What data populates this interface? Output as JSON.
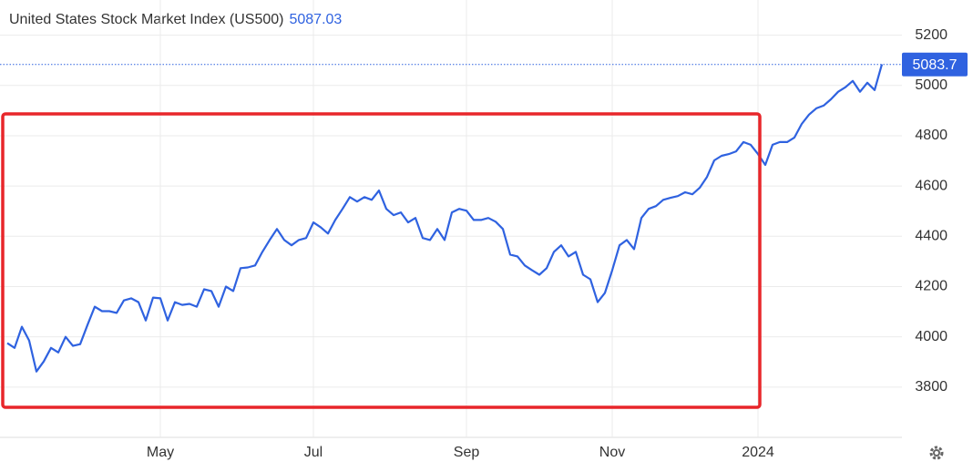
{
  "chart_data": {
    "type": "line",
    "title": "United States Stock Market Index (US500)",
    "price": "5087.03",
    "last_value": 5083.7,
    "categories": [
      null,
      null,
      null,
      null,
      null,
      null,
      null,
      null,
      null,
      null,
      null,
      null,
      null,
      null,
      null,
      null,
      null,
      null,
      null,
      null,
      null,
      "May",
      null,
      null,
      null,
      null,
      null,
      null,
      null,
      null,
      null,
      null,
      null,
      null,
      null,
      null,
      null,
      null,
      null,
      null,
      null,
      null,
      "Jul",
      null,
      null,
      null,
      null,
      null,
      null,
      null,
      null,
      null,
      null,
      null,
      null,
      null,
      null,
      null,
      null,
      null,
      null,
      null,
      null,
      "Sep",
      null,
      null,
      null,
      null,
      null,
      null,
      null,
      null,
      null,
      null,
      null,
      null,
      null,
      null,
      null,
      null,
      null,
      null,
      null,
      "Nov",
      null,
      null,
      null,
      null,
      null,
      null,
      null,
      null,
      null,
      null,
      null,
      null,
      null,
      null,
      null,
      null,
      null,
      null,
      null,
      "2024",
      null,
      null,
      null,
      null,
      null,
      null,
      null,
      null,
      null,
      null,
      null,
      null,
      null,
      null,
      null,
      null,
      null
    ],
    "series": [
      {
        "name": "US500",
        "color": "#2f62e0",
        "values": [
          3975,
          3956,
          4040,
          3985,
          3862,
          3902,
          3956,
          3938,
          4000,
          3964,
          3971,
          4047,
          4120,
          4102,
          4102,
          4095,
          4145,
          4153,
          4138,
          4065,
          4156,
          4153,
          4065,
          4138,
          4127,
          4131,
          4120,
          4189,
          4182,
          4120,
          4200,
          4182,
          4273,
          4276,
          4284,
          4338,
          4385,
          4429,
          4385,
          4364,
          4385,
          4393,
          4455,
          4436,
          4411,
          4465,
          4509,
          4556,
          4538,
          4556,
          4545,
          4582,
          4509,
          4484,
          4495,
          4455,
          4473,
          4393,
          4385,
          4429,
          4385,
          4495,
          4509,
          4502,
          4465,
          4465,
          4473,
          4458,
          4429,
          4327,
          4320,
          4284,
          4265,
          4247,
          4273,
          4338,
          4364,
          4320,
          4338,
          4247,
          4229,
          4138,
          4175,
          4265,
          4364,
          4385,
          4349,
          4473,
          4509,
          4520,
          4545,
          4553,
          4560,
          4575,
          4567,
          4593,
          4636,
          4702,
          4720,
          4727,
          4738,
          4775,
          4764,
          4727,
          4684,
          4764,
          4775,
          4775,
          4793,
          4847,
          4884,
          4909,
          4920,
          4945,
          4975,
          4993,
          5018,
          4975,
          5011,
          4982,
          5084
        ]
      }
    ],
    "ylim": [
      3600,
      5340
    ],
    "yticks": [
      3800,
      4000,
      4200,
      4400,
      4600,
      4800,
      5000,
      5200
    ],
    "grid": true
  }
}
